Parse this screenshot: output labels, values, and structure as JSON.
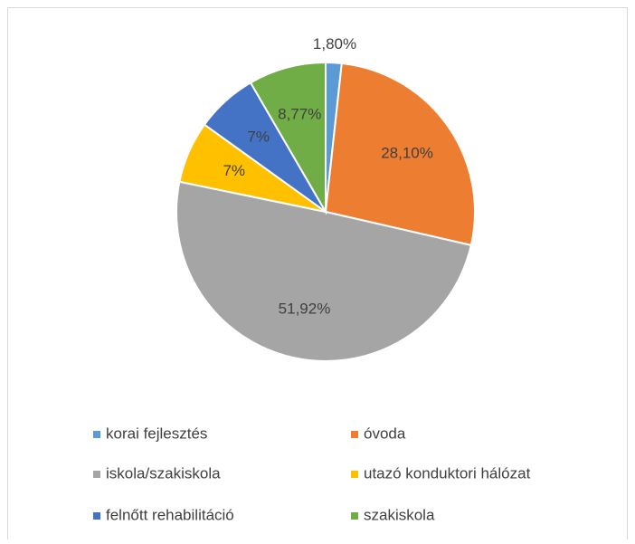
{
  "chart_data": {
    "type": "pie",
    "categories": [
      "korai fejlesztés",
      "óvoda",
      "iskola/szakiskola",
      "utazó konduktori hálózat",
      "felnőtt rehabilitáció",
      "szakiskola"
    ],
    "values": [
      1.8,
      28.1,
      51.92,
      7,
      7,
      8.77
    ],
    "value_labels": [
      "1,80%",
      "28,10%",
      "51,92%",
      "7%",
      "7%",
      "8,77%"
    ],
    "colors": [
      "#5b9bd5",
      "#ed7d31",
      "#a5a5a5",
      "#ffc000",
      "#4472c4",
      "#70ad47"
    ],
    "legend": "bottom"
  }
}
